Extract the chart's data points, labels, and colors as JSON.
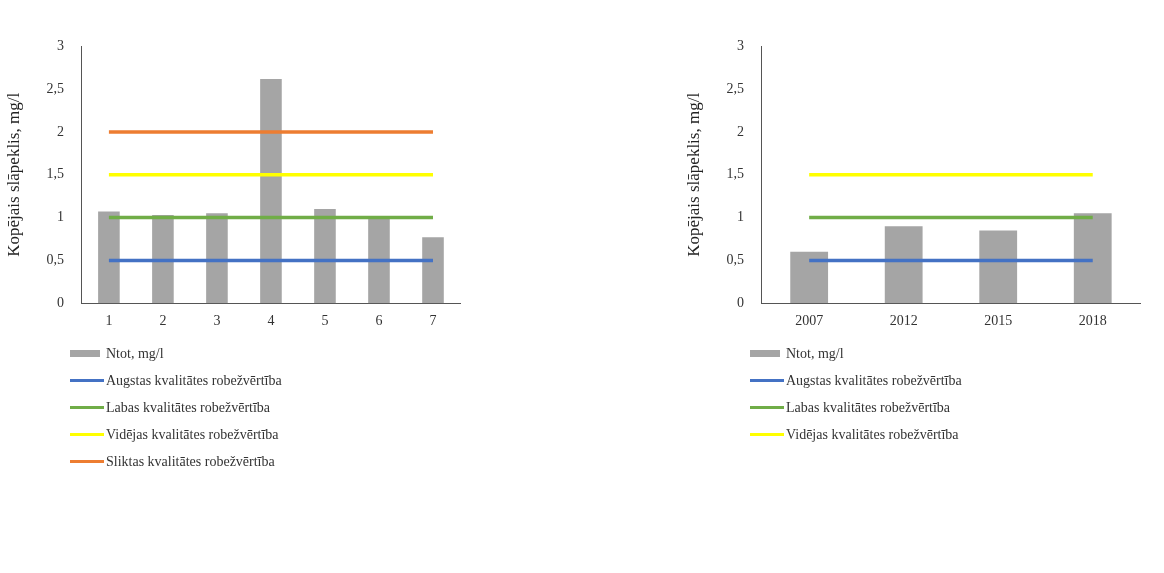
{
  "chart_data": [
    {
      "type": "bar",
      "ylabel": "Kopējais slāpeklis, mg/l",
      "categories": [
        "1",
        "2",
        "3",
        "4",
        "5",
        "6",
        "7"
      ],
      "ylim": [
        0,
        3
      ],
      "yticks": [
        0,
        {
          "value": 0.5,
          "label": "0,5"
        },
        1,
        {
          "value": 1.5,
          "label": "1,5"
        },
        2,
        {
          "value": 2.5,
          "label": "2,5"
        },
        3
      ],
      "grid": false,
      "legend": "bottom",
      "marker": "none",
      "series": [
        {
          "name": "Ntot,  mg/l",
          "color": "#a5a5a5",
          "values": [
            1.07,
            1.03,
            1.05,
            2.62,
            1.1,
            1.0,
            0.77
          ]
        },
        {
          "name": "Augstas kvalitātes robežvērtība",
          "type": "line",
          "color": "#4472c4",
          "values": [
            0.5,
            0.5,
            0.5,
            0.5,
            0.5,
            0.5,
            0.5
          ]
        },
        {
          "name": "Labas kvalitātes robežvērtība",
          "type": "line",
          "color": "#70ad47",
          "values": [
            1,
            1,
            1,
            1,
            1,
            1,
            1
          ]
        },
        {
          "name": "Vidējas kvalitātes robežvērtība",
          "type": "line",
          "color": "#ffff00",
          "values": [
            1.5,
            1.5,
            1.5,
            1.5,
            1.5,
            1.5,
            1.5
          ]
        },
        {
          "name": "Sliktas kvalitātes robežvērtība",
          "type": "line",
          "color": "#ed7d31",
          "values": [
            2,
            2,
            2,
            2,
            2,
            2,
            2
          ]
        }
      ]
    },
    {
      "type": "bar",
      "ylabel": "Kopējais slāpeklis, mg/l",
      "categories": [
        "2007",
        "2012",
        "2015",
        "2018"
      ],
      "ylim": [
        0,
        3
      ],
      "yticks": [
        0,
        {
          "value": 0.5,
          "label": "0,5"
        },
        1,
        {
          "value": 1.5,
          "label": "1,5"
        },
        2,
        {
          "value": 2.5,
          "label": "2,5"
        },
        3
      ],
      "grid": false,
      "legend": "bottom",
      "marker": "none",
      "series": [
        {
          "name": "Ntot,  mg/l",
          "color": "#a5a5a5",
          "values": [
            0.6,
            0.9,
            0.85,
            1.05
          ]
        },
        {
          "name": "Augstas kvalitātes robežvērtība",
          "type": "line",
          "color": "#4472c4",
          "values": [
            0.5,
            0.5,
            0.5,
            0.5
          ]
        },
        {
          "name": "Labas kvalitātes robežvērtība",
          "type": "line",
          "color": "#70ad47",
          "values": [
            1,
            1,
            1,
            1
          ]
        },
        {
          "name": "Vidējas kvalitātes robežvērtība",
          "type": "line",
          "color": "#ffff00",
          "values": [
            1.5,
            1.5,
            1.5,
            1.5
          ]
        }
      ]
    }
  ]
}
